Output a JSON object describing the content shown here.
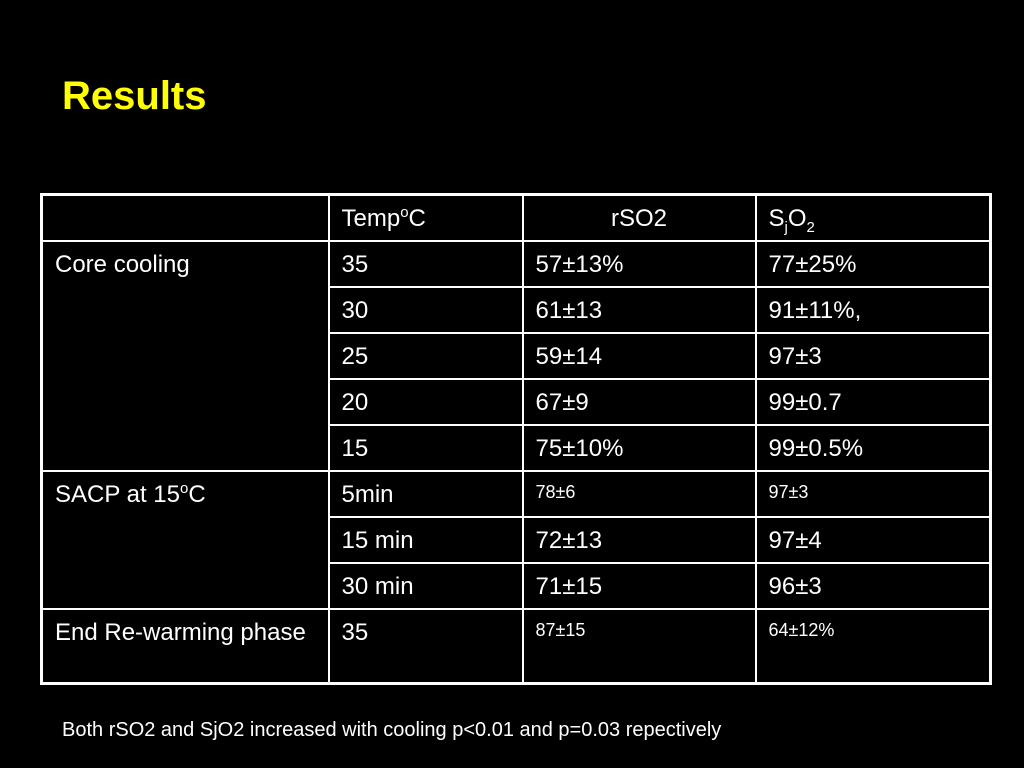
{
  "title": "Results",
  "header": {
    "temp": {
      "base": "Temp",
      "sup": "o",
      "tail": "C"
    },
    "rso2": "rSO2",
    "sjo2": {
      "s": "S",
      "j": "j",
      "o": "O",
      "two": "2"
    }
  },
  "groups": {
    "core_cooling": "Core cooling",
    "sacp": {
      "base": "SACP at 15",
      "sup": "o",
      "tail": "C"
    },
    "end_rewarming": "End Re-warming phase"
  },
  "rows": [
    {
      "temp": "35",
      "rso2": "57±13%",
      "sjo2": "77±25%"
    },
    {
      "temp": "30",
      "rso2": "61±13",
      "sjo2": "91±11%,"
    },
    {
      "temp": "25",
      "rso2": "59±14",
      "sjo2": "97±3"
    },
    {
      "temp": "20",
      "rso2": "67±9",
      "sjo2": "99±0.7"
    },
    {
      "temp": "15",
      "rso2": "75±10%",
      "sjo2": "99±0.5%"
    },
    {
      "temp": "5min",
      "rso2": "78±6",
      "sjo2": "97±3"
    },
    {
      "temp": "15 min",
      "rso2": "72±13",
      "sjo2": "97±4"
    },
    {
      "temp": "30 min",
      "rso2": "71±15",
      "sjo2": "96±3"
    },
    {
      "temp": "35",
      "rso2": "87±15",
      "sjo2": "64±12%"
    }
  ],
  "footnote": "Both rSO2 and SjO2 increased with cooling p<0.01 and  p=0.03 repectively",
  "colors": {
    "background": "#000000",
    "title": "#ffff00",
    "text": "#ffffff"
  }
}
